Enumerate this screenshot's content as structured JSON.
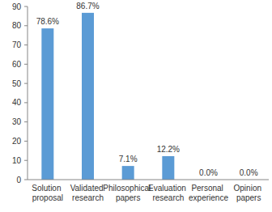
{
  "chart_data": {
    "type": "bar",
    "categories": [
      "Solution proposal",
      "Validated research",
      "Philosophical papers",
      "Evaluation research",
      "Personal experience",
      "Opinion papers"
    ],
    "values": [
      78.6,
      86.7,
      7.1,
      12.2,
      0.0,
      0.0
    ],
    "value_labels": [
      "78.6%",
      "86.7%",
      "7.1%",
      "12.2%",
      "0.0%",
      "0.0%"
    ],
    "color": "#5b9bd5",
    "ylim": [
      0,
      90
    ],
    "yticks": [
      0,
      10,
      20,
      30,
      40,
      50,
      60,
      70,
      80,
      90
    ],
    "grid": false,
    "data_labels": true
  }
}
